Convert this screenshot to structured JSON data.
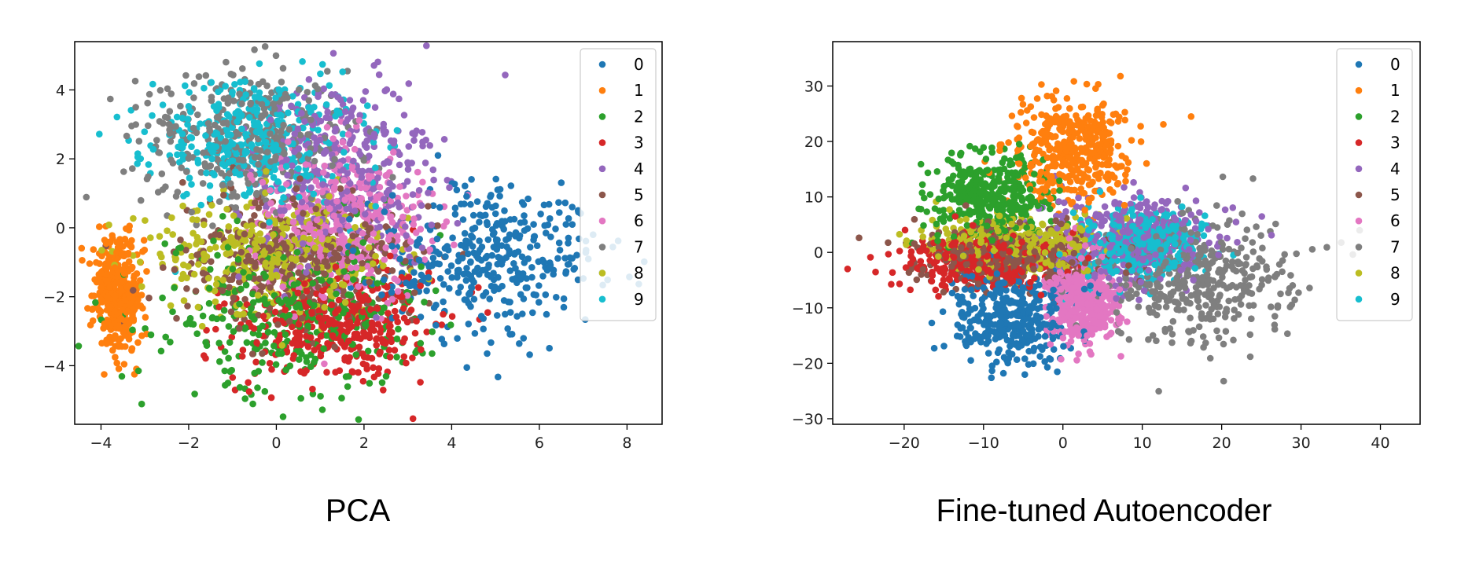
{
  "captions": {
    "left": "PCA",
    "right": "Fine-tuned Autoencoder"
  },
  "legend": {
    "position": "top-right",
    "labels": [
      "0",
      "1",
      "2",
      "3",
      "4",
      "5",
      "6",
      "7",
      "8",
      "9"
    ],
    "colors": [
      "#1f77b4",
      "#ff7f0e",
      "#2ca02c",
      "#d62728",
      "#9467bd",
      "#8c564b",
      "#e377c2",
      "#7f7f7f",
      "#bcbd22",
      "#17becf"
    ]
  },
  "chart_data": [
    {
      "id": "pca",
      "type": "scatter",
      "title": "",
      "xlabel": "",
      "ylabel": "",
      "xlim": [
        -4.6,
        8.8
      ],
      "ylim": [
        -5.7,
        5.4
      ],
      "xticks": [
        -4,
        -2,
        0,
        2,
        4,
        6,
        8
      ],
      "xtick_labels": [
        "−4",
        "−2",
        "0",
        "2",
        "4",
        "6",
        "8"
      ],
      "yticks": [
        -4,
        -2,
        0,
        2,
        4
      ],
      "ytick_labels": [
        "−4",
        "−2",
        "0",
        "2",
        "4"
      ],
      "grid": false,
      "clusters": [
        {
          "label": "0",
          "cx": 4.8,
          "cy": -0.9,
          "sx": 1.25,
          "sy": 1.0
        },
        {
          "label": "1",
          "cx": -3.6,
          "cy": -2.0,
          "sx": 0.28,
          "sy": 0.85
        },
        {
          "label": "2",
          "cx": 0.5,
          "cy": -2.4,
          "sx": 1.5,
          "sy": 1.1
        },
        {
          "label": "3",
          "cx": 1.3,
          "cy": -2.8,
          "sx": 1.1,
          "sy": 0.8
        },
        {
          "label": "4",
          "cx": 1.6,
          "cy": 1.6,
          "sx": 1.0,
          "sy": 1.3
        },
        {
          "label": "5",
          "cx": 0.6,
          "cy": -1.0,
          "sx": 1.4,
          "sy": 1.0
        },
        {
          "label": "6",
          "cx": 1.6,
          "cy": 0.3,
          "sx": 1.0,
          "sy": 1.1
        },
        {
          "label": "7",
          "cx": -0.7,
          "cy": 2.6,
          "sx": 1.2,
          "sy": 1.0
        },
        {
          "label": "8",
          "cx": 0.0,
          "cy": -0.8,
          "sx": 1.5,
          "sy": 0.9
        },
        {
          "label": "9",
          "cx": -0.6,
          "cy": 2.5,
          "sx": 1.1,
          "sy": 0.9
        }
      ]
    },
    {
      "id": "autoencoder",
      "type": "scatter",
      "title": "",
      "xlabel": "",
      "ylabel": "",
      "xlim": [
        -29,
        45
      ],
      "ylim": [
        -31,
        38
      ],
      "xticks": [
        -20,
        -10,
        0,
        10,
        20,
        30,
        40
      ],
      "xtick_labels": [
        "−20",
        "−10",
        "0",
        "10",
        "20",
        "30",
        "40"
      ],
      "yticks": [
        -30,
        -20,
        -10,
        0,
        10,
        20,
        30
      ],
      "ytick_labels": [
        "−30",
        "−20",
        "−10",
        "0",
        "10",
        "20",
        "30"
      ],
      "grid": false,
      "clusters": [
        {
          "label": "0",
          "cx": -6.5,
          "cy": -11.5,
          "sx": 3.5,
          "sy": 4.5
        },
        {
          "label": "1",
          "cx": 1.0,
          "cy": 18.0,
          "sx": 3.8,
          "sy": 5.0
        },
        {
          "label": "2",
          "cx": -9.0,
          "cy": 10.0,
          "sx": 3.5,
          "sy": 4.0
        },
        {
          "label": "3",
          "cx": -10.0,
          "cy": -1.5,
          "sx": 5.0,
          "sy": 2.5
        },
        {
          "label": "4",
          "cx": 9.0,
          "cy": 2.5,
          "sx": 5.0,
          "sy": 4.0
        },
        {
          "label": "5",
          "cx": -7.0,
          "cy": -0.5,
          "sx": 6.0,
          "sy": 2.5
        },
        {
          "label": "6",
          "cx": 2.5,
          "cy": -9.0,
          "sx": 2.2,
          "sy": 4.0
        },
        {
          "label": "7",
          "cx": 17.0,
          "cy": -5.0,
          "sx": 6.0,
          "sy": 5.5
        },
        {
          "label": "8",
          "cx": -6.0,
          "cy": 1.5,
          "sx": 5.5,
          "sy": 2.5
        },
        {
          "label": "9",
          "cx": 10.0,
          "cy": 1.5,
          "sx": 4.0,
          "sy": 3.0
        }
      ]
    }
  ]
}
